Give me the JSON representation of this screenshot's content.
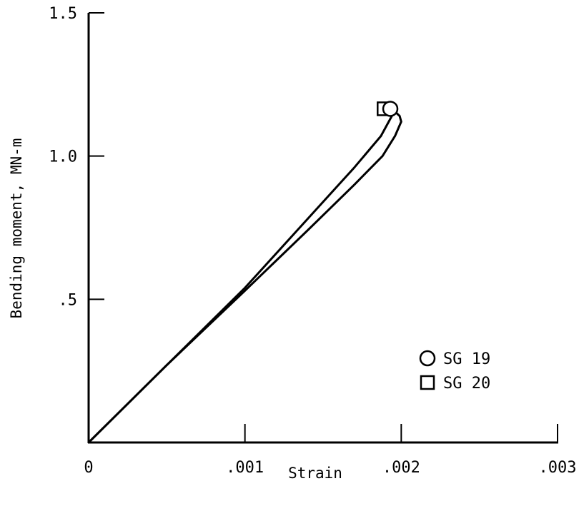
{
  "chart_data": {
    "type": "line",
    "title": "",
    "xlabel": "Strain",
    "ylabel": "Bending moment, MN-m",
    "xlim": [
      0,
      0.003
    ],
    "ylim": [
      0,
      1.5
    ],
    "x_ticks": [
      0,
      0.001,
      0.002,
      0.003
    ],
    "x_tick_labels": [
      "0",
      ".001",
      ".002",
      ".003"
    ],
    "y_ticks": [
      0.5,
      1.0,
      1.5
    ],
    "y_tick_labels": [
      ".5",
      "1.0",
      "1.5"
    ],
    "grid": false,
    "legend": "right-lower",
    "series": [
      {
        "name": "SG 19",
        "marker": "circle",
        "x": [
          0,
          0.0005,
          0.001,
          0.0014,
          0.0017,
          0.00188,
          0.00196,
          0.002,
          0.00199,
          0.00195,
          0.00193
        ],
        "y": [
          0,
          0.27,
          0.53,
          0.74,
          0.9,
          1.0,
          1.07,
          1.12,
          1.14,
          1.16,
          1.165
        ]
      },
      {
        "name": "SG 20",
        "marker": "square",
        "x": [
          0,
          0.0005,
          0.001,
          0.0014,
          0.0017,
          0.00187,
          0.00194,
          0.00191,
          0.00189
        ],
        "y": [
          0,
          0.27,
          0.54,
          0.78,
          0.96,
          1.07,
          1.14,
          1.16,
          1.165
        ]
      }
    ],
    "end_markers": [
      {
        "series": "SG 19",
        "x": 0.00193,
        "y": 1.165
      },
      {
        "series": "SG 20",
        "x": 0.00189,
        "y": 1.165
      }
    ]
  }
}
